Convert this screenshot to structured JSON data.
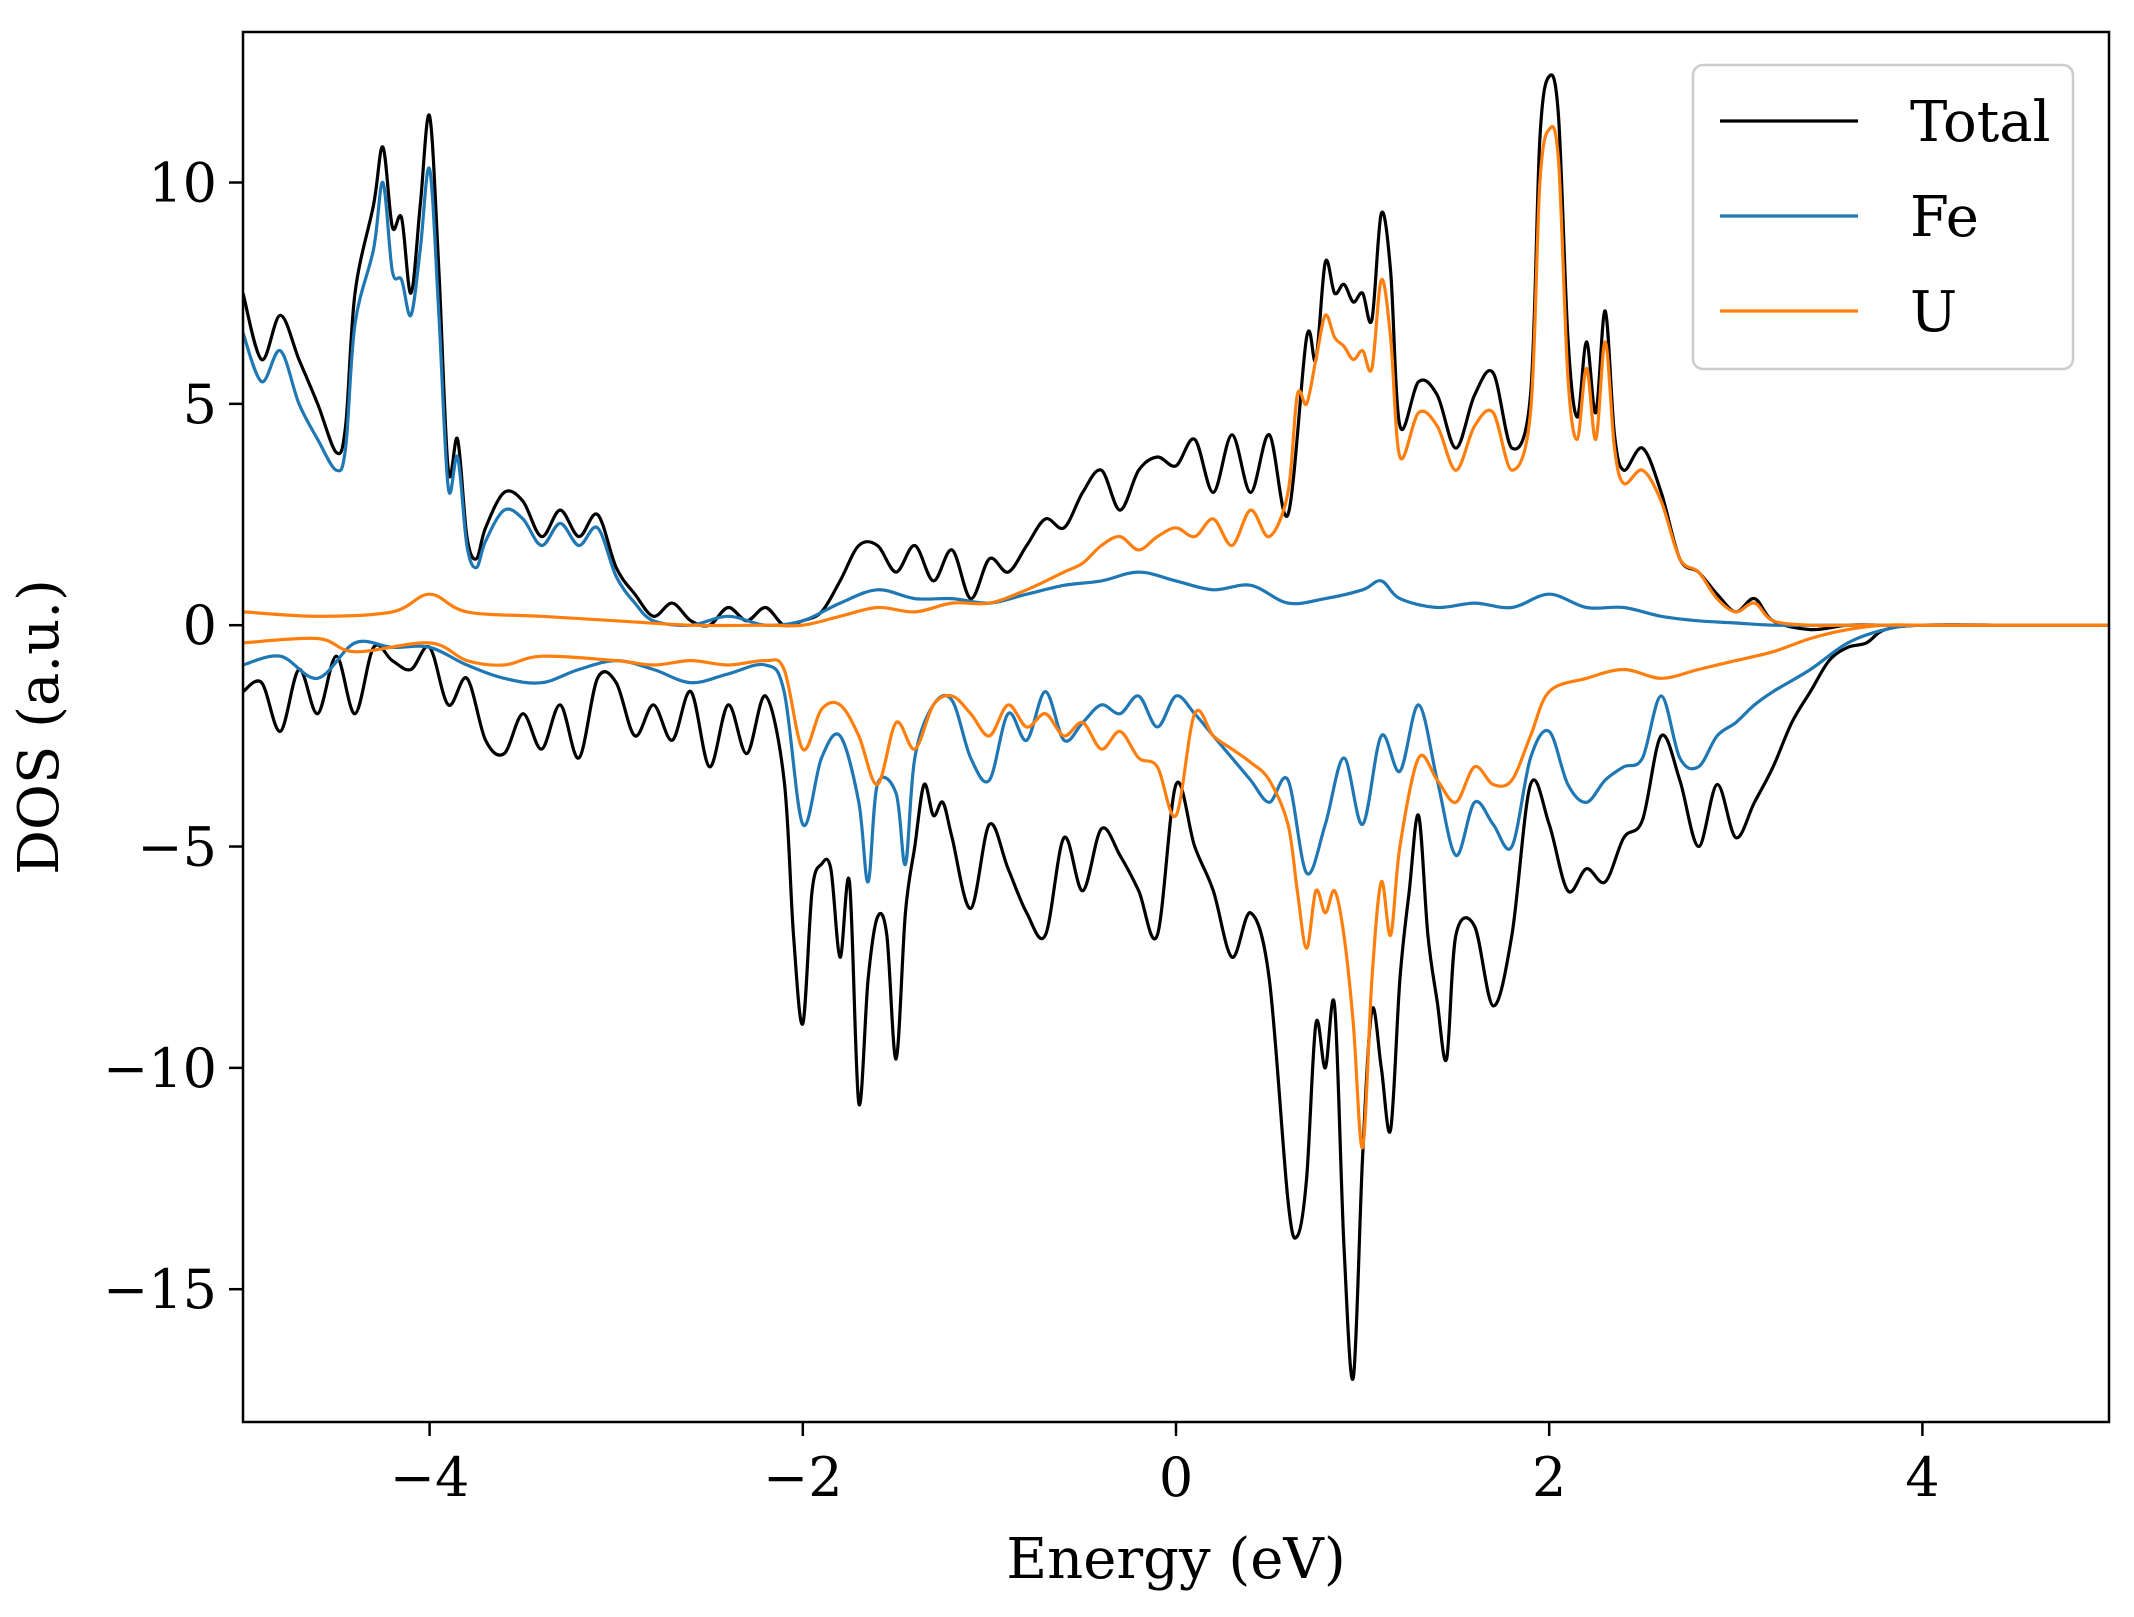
{
  "chart_data": {
    "type": "line",
    "xlabel": "Energy (eV)",
    "ylabel": "DOS (a.u.)",
    "xlim": [
      -5,
      5
    ],
    "ylim": [
      -18,
      13.4
    ],
    "x_ticks": [
      -4,
      -2,
      0,
      2,
      4
    ],
    "x_tick_labels": [
      "−4",
      "−2",
      "0",
      "2",
      "4"
    ],
    "y_ticks": [
      10,
      5,
      0,
      -5,
      -10,
      -15
    ],
    "y_tick_labels": [
      "10",
      "5",
      "0",
      "−5",
      "−10",
      "−15"
    ],
    "grid": false,
    "legend_position": "top-right",
    "legend": [
      "Total",
      "Fe",
      "U"
    ],
    "series": [
      {
        "name": "Total",
        "color": "#000000",
        "spin_up": {
          "x": [
            -5.0,
            -4.9,
            -4.8,
            -4.7,
            -4.6,
            -4.5,
            -4.45,
            -4.4,
            -4.3,
            -4.25,
            -4.2,
            -4.15,
            -4.1,
            -4.05,
            -4.0,
            -3.95,
            -3.9,
            -3.85,
            -3.8,
            -3.75,
            -3.7,
            -3.6,
            -3.5,
            -3.4,
            -3.3,
            -3.2,
            -3.1,
            -3.0,
            -2.9,
            -2.8,
            -2.7,
            -2.6,
            -2.5,
            -2.4,
            -2.3,
            -2.2,
            -2.1,
            -2.0,
            -1.9,
            -1.8,
            -1.7,
            -1.6,
            -1.5,
            -1.4,
            -1.3,
            -1.2,
            -1.1,
            -1.0,
            -0.9,
            -0.8,
            -0.7,
            -0.6,
            -0.5,
            -0.4,
            -0.3,
            -0.2,
            -0.1,
            0.0,
            0.1,
            0.2,
            0.3,
            0.4,
            0.5,
            0.6,
            0.7,
            0.75,
            0.8,
            0.85,
            0.9,
            0.95,
            1.0,
            1.05,
            1.1,
            1.15,
            1.2,
            1.3,
            1.4,
            1.5,
            1.6,
            1.7,
            1.8,
            1.9,
            1.95,
            2.0,
            2.05,
            2.1,
            2.15,
            2.2,
            2.25,
            2.3,
            2.35,
            2.4,
            2.5,
            2.6,
            2.7,
            2.8,
            2.9,
            3.0,
            3.1,
            3.2,
            3.4,
            3.6,
            3.8,
            4.0,
            4.5,
            5.0
          ],
          "y": [
            7.5,
            6.0,
            7.0,
            6.0,
            5.0,
            3.9,
            4.5,
            7.5,
            9.5,
            10.8,
            9.0,
            9.2,
            7.5,
            9.5,
            11.5,
            8.0,
            3.5,
            4.2,
            2.0,
            1.5,
            2.2,
            3.0,
            2.8,
            2.0,
            2.6,
            2.0,
            2.5,
            1.3,
            0.7,
            0.2,
            0.5,
            0.1,
            0.0,
            0.4,
            0.1,
            0.4,
            0.0,
            0.1,
            0.3,
            1.0,
            1.8,
            1.8,
            1.2,
            1.8,
            1.0,
            1.7,
            0.6,
            1.5,
            1.2,
            1.8,
            2.4,
            2.2,
            3.0,
            3.5,
            2.6,
            3.5,
            3.8,
            3.6,
            4.2,
            3.0,
            4.3,
            3.0,
            4.3,
            2.5,
            6.5,
            6.0,
            8.2,
            7.5,
            7.7,
            7.3,
            7.5,
            6.9,
            9.3,
            8.0,
            4.5,
            5.5,
            5.2,
            4.0,
            5.2,
            5.7,
            4.0,
            5.2,
            11.0,
            12.4,
            11.5,
            6.5,
            4.7,
            6.4,
            4.8,
            7.1,
            4.3,
            3.5,
            4.0,
            3.0,
            1.5,
            1.2,
            0.7,
            0.3,
            0.6,
            0.1,
            -0.1,
            0.0,
            0.0,
            0.0,
            0.0,
            0.0
          ]
        },
        "spin_down": {
          "x": [
            -5.0,
            -4.9,
            -4.8,
            -4.7,
            -4.6,
            -4.5,
            -4.4,
            -4.3,
            -4.2,
            -4.1,
            -4.0,
            -3.9,
            -3.8,
            -3.7,
            -3.6,
            -3.5,
            -3.4,
            -3.3,
            -3.2,
            -3.1,
            -3.0,
            -2.9,
            -2.8,
            -2.7,
            -2.6,
            -2.5,
            -2.4,
            -2.3,
            -2.2,
            -2.1,
            -2.05,
            -2.0,
            -1.95,
            -1.9,
            -1.85,
            -1.8,
            -1.75,
            -1.7,
            -1.65,
            -1.6,
            -1.55,
            -1.5,
            -1.45,
            -1.4,
            -1.35,
            -1.3,
            -1.25,
            -1.2,
            -1.1,
            -1.0,
            -0.9,
            -0.8,
            -0.7,
            -0.6,
            -0.5,
            -0.4,
            -0.3,
            -0.2,
            -0.1,
            0.0,
            0.1,
            0.2,
            0.3,
            0.4,
            0.5,
            0.6,
            0.65,
            0.7,
            0.75,
            0.8,
            0.85,
            0.9,
            0.95,
            1.0,
            1.05,
            1.1,
            1.15,
            1.2,
            1.25,
            1.3,
            1.35,
            1.4,
            1.45,
            1.5,
            1.6,
            1.7,
            1.8,
            1.9,
            2.0,
            2.1,
            2.2,
            2.3,
            2.4,
            2.5,
            2.6,
            2.7,
            2.8,
            2.9,
            3.0,
            3.1,
            3.2,
            3.3,
            3.4,
            3.5,
            3.6,
            3.7,
            3.8,
            4.0,
            4.5,
            5.0
          ],
          "y": [
            -1.5,
            -1.3,
            -2.4,
            -1.0,
            -2.0,
            -0.7,
            -2.0,
            -0.5,
            -0.8,
            -1.0,
            -0.5,
            -1.8,
            -1.2,
            -2.6,
            -2.9,
            -2.0,
            -2.8,
            -1.8,
            -3.0,
            -1.2,
            -1.3,
            -2.5,
            -1.8,
            -2.6,
            -1.5,
            -3.2,
            -1.8,
            -2.9,
            -1.6,
            -3.5,
            -7.0,
            -9.0,
            -6.0,
            -5.4,
            -5.5,
            -7.5,
            -5.8,
            -10.8,
            -8.0,
            -6.6,
            -7.0,
            -9.8,
            -6.5,
            -5.0,
            -3.6,
            -4.3,
            -4.0,
            -4.8,
            -6.4,
            -4.5,
            -5.5,
            -6.5,
            -7.0,
            -4.8,
            -6.0,
            -4.6,
            -5.2,
            -6.0,
            -7.0,
            -3.6,
            -5.0,
            -6.0,
            -7.5,
            -6.5,
            -8.0,
            -13.0,
            -13.8,
            -12.5,
            -9.0,
            -10.0,
            -8.6,
            -14.0,
            -17.0,
            -12.0,
            -8.7,
            -10.0,
            -11.4,
            -8.0,
            -6.0,
            -4.3,
            -7.0,
            -8.5,
            -9.8,
            -7.0,
            -6.8,
            -8.6,
            -7.0,
            -3.6,
            -4.5,
            -6.0,
            -5.5,
            -5.8,
            -4.8,
            -4.4,
            -2.5,
            -3.5,
            -5.0,
            -3.6,
            -4.8,
            -4.0,
            -3.2,
            -2.2,
            -1.5,
            -0.8,
            -0.5,
            -0.4,
            -0.1,
            0.0,
            0.0,
            0.0
          ]
        }
      },
      {
        "name": "Fe",
        "color": "#1f77b4",
        "spin_up": {
          "x": [
            -5.0,
            -4.9,
            -4.8,
            -4.7,
            -4.6,
            -4.5,
            -4.45,
            -4.4,
            -4.3,
            -4.25,
            -4.2,
            -4.15,
            -4.1,
            -4.05,
            -4.0,
            -3.95,
            -3.9,
            -3.85,
            -3.8,
            -3.75,
            -3.7,
            -3.6,
            -3.5,
            -3.4,
            -3.3,
            -3.2,
            -3.1,
            -3.0,
            -2.9,
            -2.8,
            -2.6,
            -2.4,
            -2.2,
            -2.0,
            -1.8,
            -1.6,
            -1.4,
            -1.2,
            -1.0,
            -0.8,
            -0.6,
            -0.4,
            -0.2,
            0.0,
            0.2,
            0.4,
            0.6,
            0.8,
            1.0,
            1.1,
            1.2,
            1.4,
            1.6,
            1.8,
            2.0,
            2.2,
            2.4,
            2.6,
            2.8,
            3.0,
            3.2,
            3.5,
            4.0,
            4.5,
            5.0
          ],
          "y": [
            6.6,
            5.5,
            6.2,
            5.0,
            4.2,
            3.5,
            4.0,
            6.8,
            8.5,
            10.0,
            8.0,
            7.8,
            7.0,
            8.5,
            10.3,
            7.0,
            3.1,
            3.8,
            1.8,
            1.3,
            1.9,
            2.6,
            2.4,
            1.8,
            2.3,
            1.8,
            2.2,
            1.1,
            0.5,
            0.1,
            0.0,
            0.2,
            0.0,
            0.1,
            0.5,
            0.8,
            0.6,
            0.6,
            0.5,
            0.7,
            0.9,
            1.0,
            1.2,
            1.0,
            0.8,
            0.9,
            0.5,
            0.6,
            0.8,
            1.0,
            0.6,
            0.4,
            0.5,
            0.4,
            0.7,
            0.4,
            0.4,
            0.2,
            0.1,
            0.05,
            0.0,
            0.0,
            0.0,
            0.0,
            0.0
          ]
        },
        "spin_down": {
          "x": [
            -5.0,
            -4.8,
            -4.6,
            -4.4,
            -4.2,
            -4.0,
            -3.8,
            -3.6,
            -3.4,
            -3.2,
            -3.0,
            -2.8,
            -2.6,
            -2.4,
            -2.2,
            -2.1,
            -2.0,
            -1.9,
            -1.8,
            -1.7,
            -1.65,
            -1.6,
            -1.5,
            -1.45,
            -1.4,
            -1.3,
            -1.2,
            -1.1,
            -1.0,
            -0.9,
            -0.8,
            -0.7,
            -0.6,
            -0.5,
            -0.4,
            -0.3,
            -0.2,
            -0.1,
            0.0,
            0.1,
            0.2,
            0.3,
            0.4,
            0.5,
            0.6,
            0.7,
            0.8,
            0.9,
            1.0,
            1.1,
            1.2,
            1.3,
            1.4,
            1.5,
            1.6,
            1.7,
            1.8,
            1.9,
            2.0,
            2.1,
            2.2,
            2.3,
            2.4,
            2.5,
            2.6,
            2.7,
            2.8,
            2.9,
            3.0,
            3.1,
            3.2,
            3.4,
            3.6,
            3.8,
            4.0,
            4.5,
            5.0
          ],
          "y": [
            -0.9,
            -0.7,
            -1.2,
            -0.4,
            -0.5,
            -0.5,
            -0.9,
            -1.2,
            -1.3,
            -1.0,
            -0.8,
            -1.0,
            -1.3,
            -1.1,
            -0.9,
            -1.5,
            -4.5,
            -3.0,
            -2.5,
            -4.0,
            -5.8,
            -3.6,
            -3.8,
            -5.4,
            -3.0,
            -1.8,
            -1.7,
            -3.0,
            -3.5,
            -2.0,
            -2.6,
            -1.5,
            -2.6,
            -2.2,
            -1.8,
            -2.0,
            -1.6,
            -2.3,
            -1.6,
            -2.0,
            -2.5,
            -3.0,
            -3.5,
            -4.0,
            -3.5,
            -5.6,
            -4.5,
            -3.0,
            -4.5,
            -2.5,
            -3.3,
            -1.8,
            -3.5,
            -5.2,
            -4.0,
            -4.5,
            -5.0,
            -3.0,
            -2.4,
            -3.6,
            -4.0,
            -3.5,
            -3.2,
            -3.0,
            -1.6,
            -3.0,
            -3.2,
            -2.5,
            -2.2,
            -1.8,
            -1.5,
            -1.0,
            -0.4,
            -0.1,
            0.0,
            0.0,
            0.0
          ]
        }
      },
      {
        "name": "U",
        "color": "#ff7f0e",
        "spin_up": {
          "x": [
            -5.0,
            -4.6,
            -4.2,
            -4.0,
            -3.8,
            -3.4,
            -3.0,
            -2.6,
            -2.2,
            -2.0,
            -1.8,
            -1.6,
            -1.4,
            -1.2,
            -1.0,
            -0.8,
            -0.6,
            -0.5,
            -0.4,
            -0.3,
            -0.2,
            -0.1,
            0.0,
            0.1,
            0.2,
            0.3,
            0.4,
            0.5,
            0.6,
            0.65,
            0.7,
            0.75,
            0.8,
            0.85,
            0.9,
            0.95,
            1.0,
            1.05,
            1.1,
            1.15,
            1.2,
            1.3,
            1.4,
            1.5,
            1.6,
            1.7,
            1.8,
            1.9,
            1.95,
            2.0,
            2.05,
            2.1,
            2.15,
            2.2,
            2.25,
            2.3,
            2.35,
            2.4,
            2.5,
            2.6,
            2.7,
            2.8,
            2.9,
            3.0,
            3.1,
            3.2,
            3.4,
            3.6,
            3.8,
            4.0,
            4.5,
            5.0
          ],
          "y": [
            0.3,
            0.2,
            0.3,
            0.7,
            0.3,
            0.2,
            0.1,
            0.0,
            0.0,
            0.0,
            0.2,
            0.4,
            0.3,
            0.5,
            0.5,
            0.8,
            1.2,
            1.4,
            1.8,
            2.0,
            1.7,
            2.0,
            2.2,
            2.0,
            2.4,
            1.8,
            2.6,
            2.0,
            3.0,
            5.2,
            5.0,
            6.0,
            7.0,
            6.5,
            6.3,
            6.0,
            6.2,
            5.8,
            7.8,
            6.5,
            3.8,
            4.8,
            4.5,
            3.5,
            4.5,
            4.8,
            3.5,
            4.8,
            10.0,
            11.2,
            10.5,
            5.6,
            4.2,
            5.8,
            4.2,
            6.4,
            4.0,
            3.2,
            3.5,
            2.8,
            1.5,
            1.2,
            0.6,
            0.3,
            0.5,
            0.1,
            0.0,
            0.0,
            0.0,
            0.0,
            0.0,
            0.0
          ]
        },
        "spin_down": {
          "x": [
            -5.0,
            -4.6,
            -4.4,
            -4.0,
            -3.8,
            -3.6,
            -3.4,
            -3.0,
            -2.8,
            -2.6,
            -2.4,
            -2.2,
            -2.1,
            -2.0,
            -1.9,
            -1.8,
            -1.7,
            -1.6,
            -1.5,
            -1.4,
            -1.3,
            -1.2,
            -1.1,
            -1.0,
            -0.9,
            -0.8,
            -0.7,
            -0.6,
            -0.5,
            -0.4,
            -0.3,
            -0.2,
            -0.1,
            0.0,
            0.1,
            0.2,
            0.3,
            0.4,
            0.5,
            0.6,
            0.65,
            0.7,
            0.75,
            0.8,
            0.85,
            0.9,
            0.95,
            1.0,
            1.05,
            1.1,
            1.15,
            1.2,
            1.3,
            1.4,
            1.5,
            1.6,
            1.7,
            1.8,
            1.9,
            2.0,
            2.2,
            2.4,
            2.6,
            2.8,
            3.0,
            3.2,
            3.4,
            3.6,
            3.8,
            4.0,
            4.5,
            5.0
          ],
          "y": [
            -0.4,
            -0.3,
            -0.6,
            -0.4,
            -0.8,
            -0.9,
            -0.7,
            -0.8,
            -0.9,
            -0.8,
            -0.9,
            -0.8,
            -1.0,
            -2.8,
            -1.9,
            -1.8,
            -2.5,
            -3.6,
            -2.2,
            -2.8,
            -1.8,
            -1.6,
            -2.0,
            -2.5,
            -1.8,
            -2.3,
            -2.0,
            -2.5,
            -2.2,
            -2.8,
            -2.4,
            -3.0,
            -3.2,
            -4.3,
            -2.0,
            -2.5,
            -2.8,
            -3.1,
            -3.5,
            -4.5,
            -6.0,
            -7.3,
            -6.0,
            -6.5,
            -6.0,
            -7.0,
            -9.0,
            -11.8,
            -8.0,
            -5.8,
            -7.0,
            -5.0,
            -3.0,
            -3.5,
            -4.0,
            -3.2,
            -3.6,
            -3.5,
            -2.5,
            -1.5,
            -1.2,
            -1.0,
            -1.2,
            -1.0,
            -0.8,
            -0.6,
            -0.3,
            -0.1,
            0.0,
            0.0,
            0.0,
            0.0
          ]
        }
      }
    ]
  }
}
